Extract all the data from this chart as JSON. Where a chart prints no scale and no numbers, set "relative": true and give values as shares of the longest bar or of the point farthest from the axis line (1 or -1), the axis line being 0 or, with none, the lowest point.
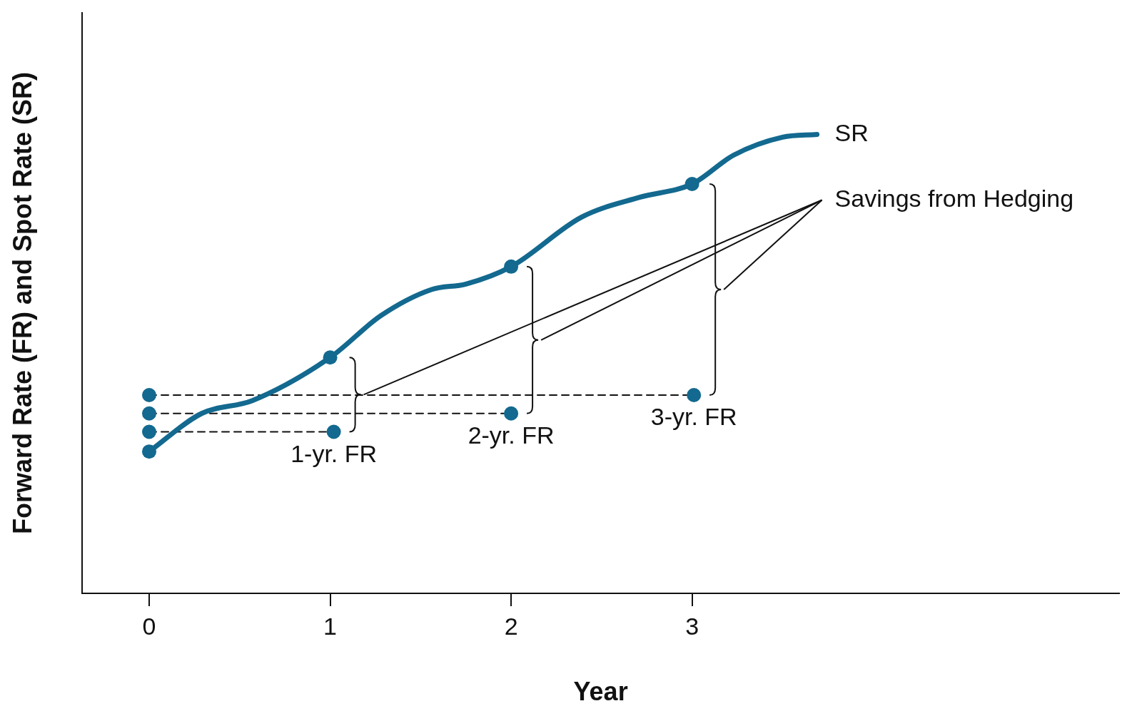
{
  "chart_data": {
    "type": "line",
    "relative": true,
    "xlabel": "Year",
    "ylabel": "Forward Rate (FR) and Spot Rate (SR)",
    "xlim": [
      -0.37,
      5.36
    ],
    "xticks": [
      0,
      1,
      2,
      3
    ],
    "grid": false,
    "legend": false,
    "series": [
      {
        "name": "SR",
        "color": "#13698f",
        "marker": "none",
        "line_style": "solid",
        "x": [
          0,
          0.29,
          0.57,
          1,
          1.28,
          1.56,
          1.75,
          2,
          2.39,
          2.71,
          3,
          3.23,
          3.5,
          3.69
        ],
        "values": [
          0.309,
          0.392,
          0.42,
          0.514,
          0.605,
          0.662,
          0.674,
          0.712,
          0.82,
          0.863,
          0.892,
          0.955,
          0.994,
          1
        ]
      },
      {
        "type": "scatter",
        "color": "#13698f",
        "marker": "circle",
        "x": [
          0,
          1,
          2,
          3
        ],
        "values": [
          0.309,
          0.514,
          0.712,
          0.892
        ]
      },
      {
        "name": "1-yr. FR",
        "type": "line",
        "color": "#13698f",
        "marker": "circle",
        "line_style": "dashed",
        "x": [
          0,
          1.02
        ],
        "values": [
          0.352,
          0.352
        ]
      },
      {
        "name": "2-yr. FR",
        "type": "line",
        "color": "#13698f",
        "marker": "circle",
        "line_style": "dashed",
        "x": [
          0,
          2
        ],
        "values": [
          0.392,
          0.392
        ]
      },
      {
        "name": "3-yr. FR",
        "type": "line",
        "color": "#13698f",
        "marker": "circle",
        "line_style": "dashed",
        "x": [
          0,
          3.01
        ],
        "values": [
          0.432,
          0.432
        ]
      }
    ],
    "annotations": [
      "Savings from Hedging"
    ]
  }
}
